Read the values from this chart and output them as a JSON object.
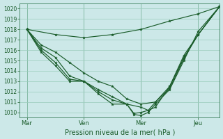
{
  "xlabel": "Pression niveau de la mer( hPa )",
  "bg_color": "#cce8e8",
  "grid_color": "#99ccbb",
  "line_color": "#1a5c2a",
  "vline_color": "#4a8a6a",
  "ylim": [
    1009.5,
    1020.5
  ],
  "yticks": [
    1010,
    1011,
    1012,
    1013,
    1014,
    1015,
    1016,
    1017,
    1018,
    1019,
    1020
  ],
  "xtick_labels": [
    "Mar",
    "Ven",
    "Mer",
    "Jeu"
  ],
  "xtick_positions": [
    0,
    8,
    16,
    24
  ],
  "vlines": [
    0,
    8,
    16,
    24
  ],
  "xlim": [
    -1,
    27
  ],
  "line1": {
    "x": [
      0,
      4,
      8,
      12,
      16,
      20,
      24,
      27
    ],
    "y": [
      1018.0,
      1017.5,
      1017.2,
      1017.5,
      1018.0,
      1018.8,
      1019.5,
      1020.2
    ]
  },
  "line2": {
    "x": [
      0,
      2,
      4,
      6,
      8,
      10,
      12,
      14,
      16,
      18,
      20,
      22,
      24,
      27
    ],
    "y": [
      1018.0,
      1016.5,
      1015.8,
      1014.8,
      1013.8,
      1013.0,
      1012.5,
      1011.3,
      1010.8,
      1011.0,
      1012.5,
      1015.5,
      1017.5,
      1020.2
    ]
  },
  "line3": {
    "x": [
      0,
      2,
      4,
      6,
      8,
      10,
      12,
      14,
      16,
      17,
      18,
      20,
      22,
      24,
      27
    ],
    "y": [
      1018.0,
      1016.2,
      1015.3,
      1013.5,
      1013.0,
      1012.2,
      1011.5,
      1010.8,
      1010.5,
      1010.2,
      1010.5,
      1012.5,
      1015.3,
      1017.5,
      1020.2
    ]
  },
  "line4": {
    "x": [
      0,
      2,
      4,
      6,
      8,
      10,
      12,
      14,
      15,
      16,
      17,
      18,
      20,
      22,
      24,
      27
    ],
    "y": [
      1018.0,
      1016.0,
      1014.8,
      1013.2,
      1013.0,
      1012.0,
      1011.2,
      1010.8,
      1009.8,
      1009.7,
      1010.0,
      1010.8,
      1012.2,
      1015.0,
      1017.8,
      1020.2
    ]
  },
  "line5": {
    "x": [
      0,
      2,
      4,
      6,
      8,
      10,
      12,
      14,
      15,
      16,
      17,
      18,
      20,
      22,
      24,
      27
    ],
    "y": [
      1018.0,
      1015.8,
      1014.5,
      1013.0,
      1013.0,
      1011.8,
      1010.8,
      1010.8,
      1009.9,
      1010.0,
      1010.2,
      1011.0,
      1012.3,
      1015.2,
      1017.5,
      1020.2
    ]
  }
}
